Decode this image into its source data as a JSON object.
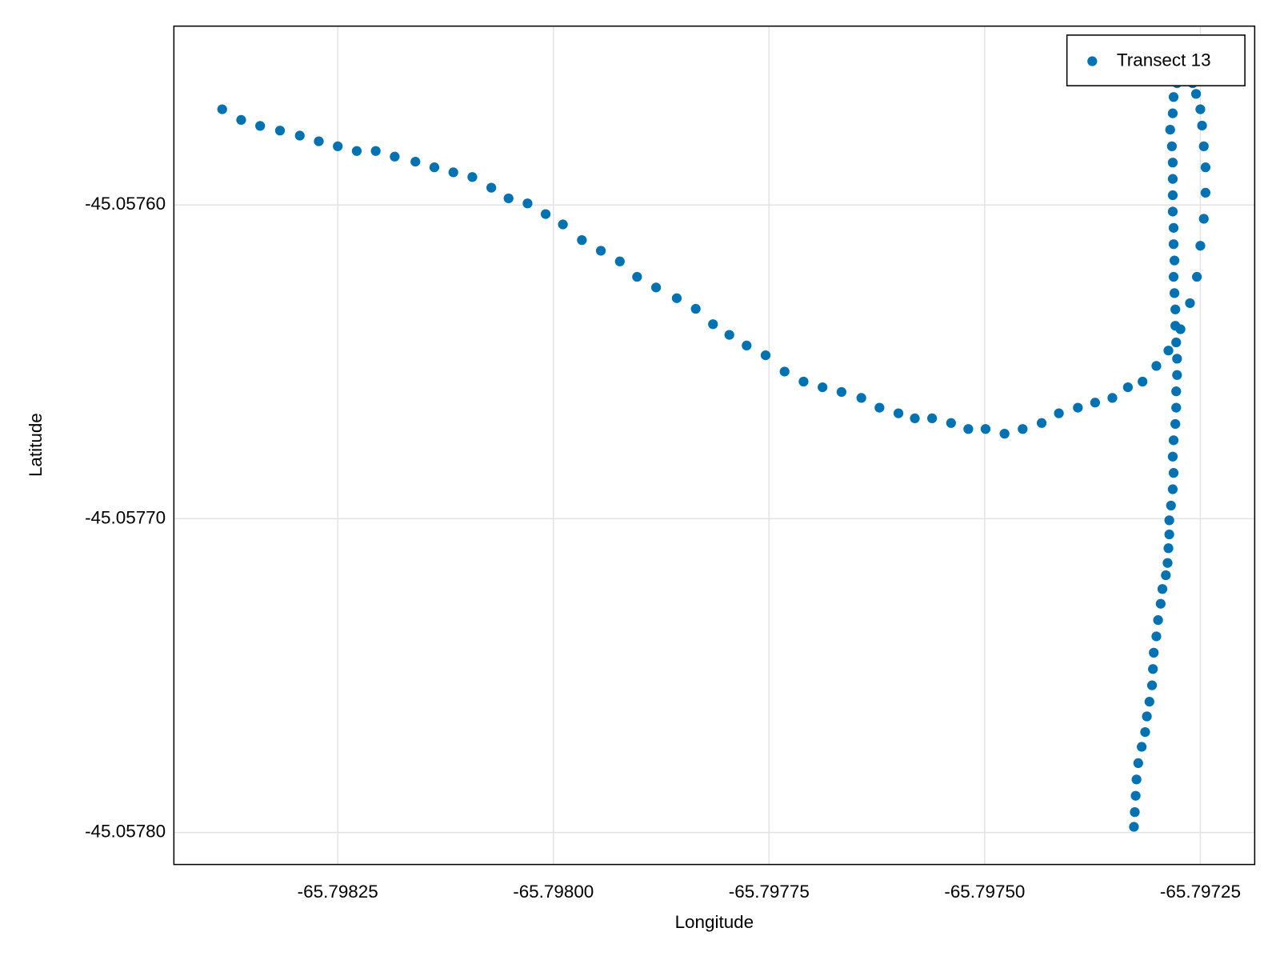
{
  "chart_data": {
    "type": "scatter",
    "xlabel": "Longitude",
    "ylabel": "Latitude",
    "series": [
      {
        "name": "Transect 13",
        "color": "#0072b2",
        "x": [
          -65.798384,
          -65.798362,
          -65.79834,
          -65.798317,
          -65.798294,
          -65.798272,
          -65.79825,
          -65.798228,
          -65.798206,
          -65.798184,
          -65.79816,
          -65.798138,
          -65.798116,
          -65.798094,
          -65.798072,
          -65.798052,
          -65.79803,
          -65.798009,
          -65.797989,
          -65.797967,
          -65.797945,
          -65.797923,
          -65.797903,
          -65.797881,
          -65.797857,
          -65.797835,
          -65.797815,
          -65.797796,
          -65.797776,
          -65.797754,
          -65.797732,
          -65.79771,
          -65.797688,
          -65.797666,
          -65.797643,
          -65.797622,
          -65.7976,
          -65.797581,
          -65.797561,
          -65.797539,
          -65.797519,
          -65.797499,
          -65.797477,
          -65.797456,
          -65.797434,
          -65.797414,
          -65.797392,
          -65.797372,
          -65.797352,
          -65.797334,
          -65.797317,
          -65.797301,
          -65.797287,
          -65.797273,
          -65.797262,
          -65.797254,
          -65.79725,
          -65.797246,
          -65.797244,
          -65.797244,
          -65.797246,
          -65.797248,
          -65.79725,
          -65.797255,
          -65.797259,
          -65.797327,
          -65.797326,
          -65.797325,
          -65.797324,
          -65.797322,
          -65.797318,
          -65.797314,
          -65.797312,
          -65.797309,
          -65.797306,
          -65.797305,
          -65.797304,
          -65.797301,
          -65.797299,
          -65.797296,
          -65.797294,
          -65.79729,
          -65.797288,
          -65.797287,
          -65.797286,
          -65.797286,
          -65.797284,
          -65.797282,
          -65.797281,
          -65.797282,
          -65.797281,
          -65.797279,
          -65.797278,
          -65.797278,
          -65.797277,
          -65.797277,
          -65.797278,
          -65.797279,
          -65.797279,
          -65.79728,
          -65.797281,
          -65.79728,
          -65.797281,
          -65.797281,
          -65.797282,
          -65.797282,
          -65.797282,
          -65.797282,
          -65.797283,
          -65.797285,
          -65.797282,
          -65.797281,
          -65.797277
        ],
        "y": [
          -45.0575695,
          -45.0575729,
          -45.0575748,
          -45.0575763,
          -45.0575779,
          -45.0575797,
          -45.0575813,
          -45.0575828,
          -45.0575828,
          -45.0575846,
          -45.0575862,
          -45.057588,
          -45.0575896,
          -45.0575911,
          -45.0575945,
          -45.0575979,
          -45.0575995,
          -45.0576029,
          -45.0576062,
          -45.0576112,
          -45.0576146,
          -45.057618,
          -45.0576229,
          -45.0576263,
          -45.0576297,
          -45.0576331,
          -45.057638,
          -45.0576414,
          -45.0576448,
          -45.0576479,
          -45.0576531,
          -45.0576563,
          -45.0576581,
          -45.0576596,
          -45.0576615,
          -45.0576646,
          -45.0576664,
          -45.057668,
          -45.057668,
          -45.0576695,
          -45.0576714,
          -45.0576714,
          -45.0576729,
          -45.0576714,
          -45.0576695,
          -45.0576664,
          -45.0576646,
          -45.057663,
          -45.0576615,
          -45.0576581,
          -45.0576563,
          -45.0576513,
          -45.0576464,
          -45.0576396,
          -45.0576313,
          -45.0576229,
          -45.057613,
          -45.0576044,
          -45.0575961,
          -45.057588,
          -45.0575813,
          -45.0575747,
          -45.0575695,
          -45.0575646,
          -45.0575612,
          -45.0577982,
          -45.0577935,
          -45.0577883,
          -45.0577831,
          -45.0577779,
          -45.0577727,
          -45.057768,
          -45.057763,
          -45.0577583,
          -45.0577531,
          -45.0577479,
          -45.0577427,
          -45.0577375,
          -45.0577323,
          -45.0577271,
          -45.0577224,
          -45.057718,
          -45.0577141,
          -45.0577094,
          -45.057705,
          -45.0577005,
          -45.0576958,
          -45.0576906,
          -45.0576854,
          -45.0576802,
          -45.057675,
          -45.0576698,
          -45.0576646,
          -45.0576594,
          -45.0576542,
          -45.057649,
          -45.0576438,
          -45.0576385,
          -45.0576333,
          -45.0576281,
          -45.0576229,
          -45.0576177,
          -45.0576125,
          -45.0576073,
          -45.0576021,
          -45.0575969,
          -45.0575917,
          -45.0575865,
          -45.0575813,
          -45.057576,
          -45.0575708,
          -45.0575656,
          -45.0575612
        ]
      }
    ],
    "xlim": [
      -65.79844,
      -65.797187
    ],
    "ylim": [
      -45.0578102,
      -45.057543
    ],
    "xticks": [
      -65.79825,
      {
        "value": -65.798,
        "label": "-65.79800"
      },
      -65.79775,
      {
        "value": -65.7975,
        "label": "-65.79750"
      },
      -65.79725
    ],
    "yticks": [
      {
        "value": -45.0576,
        "label": "-45.05760"
      },
      {
        "value": -45.0577,
        "label": "-45.05770"
      },
      {
        "value": -45.0578,
        "label": "-45.05780"
      }
    ],
    "grid": true,
    "legend": "upper right"
  }
}
